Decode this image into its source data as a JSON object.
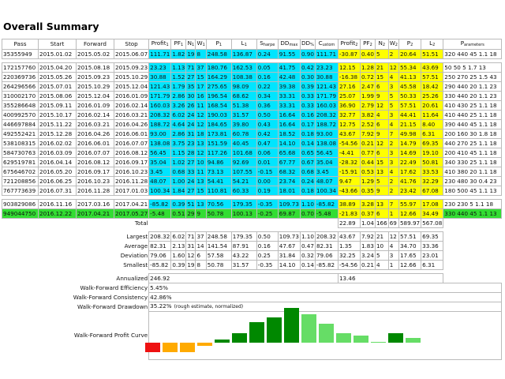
{
  "title": "Overall Summary",
  "headers": [
    "Pass",
    "Start",
    "Forward",
    "Stop",
    "Profit₁",
    "PF₁",
    "N₁",
    "W₁",
    "P₁",
    "L₁",
    "Sₕₐ⬿⬾",
    "DDₘₐₓ",
    "DD₀₀",
    "Cᵤₛₜₒₘ",
    "Profit₂",
    "PF₂",
    "N₂",
    "W₂",
    "P₂",
    "L₂",
    "Pₐᵣₐₘₑₜₑᵣₛ"
  ],
  "header_labels": {
    "pass": "Pass",
    "start": "Start",
    "forward": "Forward",
    "stop": "Stop",
    "profit1": "Profit",
    "pf1": "PF",
    "n1": "N",
    "w1": "W",
    "p1": "P",
    "l1": "L",
    "sharpe": "S",
    "sharpe_sub": "harpe",
    "ddmax": "DD",
    "ddmax_sub": "max",
    "dd": "DD",
    "dd_sub": "%",
    "custom": "C",
    "custom_sub": "ustom",
    "profit2": "Profit",
    "pf2": "PF",
    "n2": "N",
    "w2": "W",
    "p2": "P",
    "l2": "L",
    "params": "P",
    "params_sub": "arameters",
    "one": "1",
    "two": "2"
  },
  "summary_row": [
    "35355949",
    "2015.01.02",
    "2015.05.02",
    "2015.06.07",
    "111.71",
    "1.82",
    "19",
    "8",
    "248.58",
    "136.87",
    "0.24",
    "91.55",
    "0.90",
    "111.71",
    "-30.87",
    "0.40",
    "5",
    "2",
    "20.64",
    "51.51",
    "320 440 45 1.1 18"
  ],
  "rows": [
    [
      "172157760",
      "2015.04.20",
      "2015.08.18",
      "2015.09.23",
      "23.23",
      "1.13",
      "71",
      "37",
      "180.76",
      "162.53",
      "0.05",
      "41.75",
      "0.42",
      "23.23",
      "12.15",
      "1.28",
      "21",
      "12",
      "55.34",
      "43.69",
      "50 50 5 1.7 13"
    ],
    [
      "220369736",
      "2015.05.26",
      "2015.09.23",
      "2015.10.29",
      "30.88",
      "1.52",
      "27",
      "15",
      "164.29",
      "108.38",
      "0.16",
      "42.48",
      "0.30",
      "30.88",
      "-16.38",
      "0.72",
      "15",
      "4",
      "41.13",
      "57.51",
      "250 270 25 1.5 43"
    ],
    [
      "264296566",
      "2015.07.01",
      "2015.10.29",
      "2015.12.04",
      "121.43",
      "1.79",
      "35",
      "17",
      "275.65",
      "98.09",
      "0.22",
      "39.38",
      "0.39",
      "121.43",
      "27.16",
      "2.47",
      "6",
      "3",
      "45.58",
      "18.42",
      "290 440 20 1.1 23"
    ],
    [
      "310002170",
      "2015.08.06",
      "2015.12.04",
      "2016.01.09",
      "171.79",
      "2.86",
      "30",
      "16",
      "196.54",
      "68.62",
      "0.34",
      "33.31",
      "0.33",
      "171.79",
      "25.07",
      "1.99",
      "9",
      "5",
      "50.33",
      "25.26",
      "330 440 20 1.1 23"
    ],
    [
      "355286648",
      "2015.09.11",
      "2016.01.09",
      "2016.02.14",
      "160.03",
      "3.26",
      "26",
      "11",
      "168.54",
      "51.38",
      "0.36",
      "33.31",
      "0.33",
      "160.03",
      "36.90",
      "2.79",
      "12",
      "5",
      "57.51",
      "20.61",
      "410 430 25 1.1 18"
    ],
    [
      "400992570",
      "2015.10.17",
      "2016.02.14",
      "2016.03.21",
      "208.32",
      "6.02",
      "24",
      "12",
      "190.03",
      "31.57",
      "0.50",
      "16.64",
      "0.16",
      "208.32",
      "32.77",
      "3.82",
      "4",
      "3",
      "44.41",
      "11.64",
      "410 440 25 1.1 18"
    ],
    [
      "446697884",
      "2015.11.22",
      "2016.03.21",
      "2016.04.26",
      "188.72",
      "4.64",
      "24",
      "12",
      "184.65",
      "39.80",
      "0.43",
      "16.64",
      "0.17",
      "188.72",
      "12.75",
      "2.52",
      "6",
      "4",
      "21.15",
      "8.40",
      "390 440 45 1.1 18"
    ],
    [
      "492552421",
      "2015.12.28",
      "2016.04.26",
      "2016.06.01",
      "93.00",
      "2.86",
      "31",
      "18",
      "173.81",
      "60.78",
      "0.42",
      "18.52",
      "0.18",
      "93.00",
      "43.67",
      "7.92",
      "9",
      "7",
      "49.98",
      "6.31",
      "200 160 30 1.8 18"
    ],
    [
      "538108315",
      "2016.02.02",
      "2016.06.01",
      "2016.07.07",
      "138.08",
      "3.75",
      "23",
      "13",
      "151.59",
      "40.45",
      "0.47",
      "14.10",
      "0.14",
      "138.08",
      "-54.56",
      "0.21",
      "12",
      "2",
      "14.79",
      "69.35",
      "440 270 25 1.1 18"
    ],
    [
      "584730763",
      "2016.03.09",
      "2016.07.07",
      "2016.08.12",
      "56.45",
      "1.15",
      "28",
      "12",
      "117.26",
      "101.68",
      "0.06",
      "65.68",
      "0.65",
      "56.45",
      "-4.41",
      "0.77",
      "6",
      "3",
      "14.69",
      "19.10",
      "200 410 45 1.1 18"
    ],
    [
      "629519781",
      "2016.04.14",
      "2016.08.12",
      "2016.09.17",
      "35.04",
      "1.02",
      "27",
      "10",
      "94.86",
      "92.69",
      "0.01",
      "67.77",
      "0.67",
      "35.04",
      "-28.32",
      "0.44",
      "15",
      "3",
      "22.49",
      "50.81",
      "340 330 25 1.1 18"
    ],
    [
      "675646702",
      "2016.05.20",
      "2016.09.17",
      "2016.10.23",
      "3.45",
      "0.68",
      "33",
      "11",
      "73.13",
      "107.55",
      "-0.15",
      "68.32",
      "0.68",
      "3.45",
      "-15.91",
      "0.53",
      "13",
      "4",
      "17.62",
      "33.53",
      "410 380 20 1.1 18"
    ],
    [
      "721208856",
      "2016.06.25",
      "2016.10.23",
      "2016.11.28",
      "48.07",
      "1.00",
      "24",
      "13",
      "54.41",
      "54.21",
      "0.00",
      "23.74",
      "0.24",
      "48.07",
      "9.47",
      "1.29",
      "5",
      "2",
      "41.76",
      "32.29",
      "230 480 30 0.4 23"
    ],
    [
      "767773639",
      "2016.07.31",
      "2016.11.28",
      "2017.01.03",
      "100.34",
      "1.84",
      "27",
      "15",
      "110.81",
      "60.33",
      "0.19",
      "18.01",
      "0.18",
      "100.34",
      "-43.66",
      "0.35",
      "9",
      "2",
      "23.42",
      "67.08",
      "180 500 45 1.1 13"
    ]
  ],
  "forward_rows": [
    [
      "903829086",
      "2016.11.16",
      "2017.03.16",
      "2017.04.21",
      "-85.82",
      "0.39",
      "51",
      "13",
      "70.56",
      "179.35",
      "-0.35",
      "109.73",
      "1.10",
      "-85.82",
      "38.89",
      "3.28",
      "13",
      "7",
      "55.97",
      "17.08",
      "230 230 5 1.1 18"
    ],
    [
      "949044750",
      "2016.12.22",
      "2017.04.21",
      "2017.05.27",
      "-5.48",
      "0.51",
      "29",
      "9",
      "50.78",
      "100.13",
      "-0.25",
      "69.87",
      "0.70",
      "-5.48",
      "-21.83",
      "0.37",
      "6",
      "1",
      "12.66",
      "34.49",
      "330 440 45 1.1 13"
    ]
  ],
  "total": {
    "label": "Total",
    "profit2": "22.89",
    "pf2": "1.04",
    "n2": "166",
    "w2": "69",
    "p2": "589.97",
    "l2": "567.08"
  },
  "stats": [
    {
      "label": "Largest",
      "v": [
        "208.32",
        "6.02",
        "71",
        "37",
        "248.58",
        "179.35",
        "0.50",
        "109.73",
        "1.10",
        "208.32",
        "43.67",
        "7.92",
        "21",
        "12",
        "57.51",
        "69.35"
      ]
    },
    {
      "label": "Average",
      "v": [
        "82.31",
        "2.13",
        "31",
        "14",
        "141.54",
        "87.91",
        "0.16",
        "47.67",
        "0.47",
        "82.31",
        "1.35",
        "1.83",
        "10",
        "4",
        "34.70",
        "33.36"
      ]
    },
    {
      "label": "Deviation",
      "v": [
        "79.06",
        "1.60",
        "12",
        "6",
        "57.58",
        "43.22",
        "0.25",
        "31.84",
        "0.32",
        "79.06",
        "32.25",
        "3.24",
        "5",
        "3",
        "17.65",
        "23.01"
      ]
    },
    {
      "label": "Smallest",
      "v": [
        "-85.82",
        "0.39",
        "19",
        "8",
        "50.78",
        "31.57",
        "-0.35",
        "14.10",
        "0.14",
        "-85.82",
        "-54.56",
        "0.21",
        "4",
        "1",
        "12.66",
        "6.31"
      ]
    }
  ],
  "annualized": {
    "label": "Annualized",
    "value1": "246.92",
    "value2": "13.46"
  },
  "wf": [
    {
      "label": "Walk-Forward Efficiency",
      "value": "5.45%",
      "note": ""
    },
    {
      "label": "Walk-Forward Consistency",
      "value": "42.86%",
      "note": ""
    },
    {
      "label": "Walk-Forward Drawdown",
      "value": "35.22%",
      "note": "(rough estimate, normalized)"
    }
  ],
  "curve_label": "Walk-Forward Profit Curve",
  "chart_data": {
    "type": "bar",
    "values": [
      -30.87,
      -18.72,
      -16.38,
      -4.41,
      4.35,
      12.15,
      27.16,
      32.77,
      45.59,
      36.9,
      25.07,
      12.75,
      9.47,
      0.0,
      12.15,
      6.0
    ],
    "colors": [
      "#ee1111",
      "#ffaa00",
      "#ffaa00",
      "#ffaa00",
      "#008800",
      "#008800",
      "#008800",
      "#008800",
      "#008800",
      "#66dd66",
      "#66dd66",
      "#66dd66",
      "#66dd66",
      "#66dd66",
      "#008800",
      "#66dd66"
    ]
  }
}
